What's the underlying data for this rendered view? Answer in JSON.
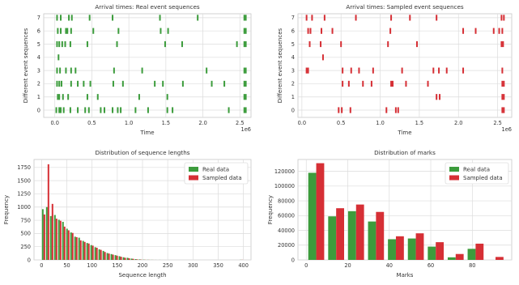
{
  "colors": {
    "real": "#3c9c3c",
    "sampled": "#d62f35",
    "grid": "#dcdcdc",
    "frame": "#c8c8c8"
  },
  "chart_data": [
    {
      "id": "real-events",
      "type": "scatter",
      "title": "Arrival times: Real event sequences",
      "xlabel": "Time",
      "ylabel": "Different event sequences",
      "x_offset_label": "1e6",
      "xlim": [
        -0.15,
        2.65
      ],
      "xticks": [
        0.0,
        0.5,
        1.0,
        1.5,
        2.0,
        2.5
      ],
      "tick_labels_x": [
        "0.0",
        "0.5",
        "1.0",
        "1.5",
        "2.0",
        "2.5"
      ],
      "yticks": [
        0,
        1,
        2,
        3,
        4,
        5,
        6,
        7
      ],
      "tick_labels_y": [
        "0",
        "1",
        "2",
        "3",
        "4",
        "5",
        "6",
        "7"
      ],
      "series_color": "real",
      "rows": [
        [
          0.02,
          0.06,
          0.08,
          0.12,
          0.21,
          0.31,
          0.41,
          0.46,
          0.62,
          0.67,
          0.78,
          0.85,
          0.89,
          1.09,
          1.26,
          1.52,
          1.59,
          2.35,
          2.56,
          2.58
        ],
        [
          0.04,
          0.06,
          0.11,
          0.18,
          0.44,
          0.58,
          1.14,
          1.52,
          2.56,
          2.58
        ],
        [
          0.03,
          0.06,
          0.09,
          0.22,
          0.31,
          0.39,
          0.48,
          0.79,
          0.92,
          1.35,
          1.46,
          1.73,
          2.12,
          2.29,
          2.56,
          2.58
        ],
        [
          0.03,
          0.07,
          0.15,
          0.22,
          0.28,
          0.8,
          1.18,
          2.05,
          2.56,
          2.58
        ],
        [
          0.05
        ],
        [
          0.03,
          0.06,
          0.1,
          0.14,
          0.21,
          0.44,
          0.84,
          1.49,
          1.72,
          2.46,
          2.56,
          2.58
        ],
        [
          0.04,
          0.08,
          0.15,
          0.17,
          0.22,
          0.52,
          0.86,
          1.43,
          1.53,
          2.56,
          2.58
        ],
        [
          0.03,
          0.08,
          0.19,
          0.23,
          0.47,
          0.78,
          1.42,
          1.93,
          2.56,
          2.58
        ]
      ]
    },
    {
      "id": "sampled-events",
      "type": "scatter",
      "title": "Arrival times: Sampled event sequences",
      "xlabel": "Time",
      "ylabel": "Different event sequences",
      "x_offset_label": "1e6",
      "xlim": [
        -0.05,
        2.68
      ],
      "xticks": [
        0.0,
        0.5,
        1.0,
        1.5,
        2.0,
        2.5
      ],
      "tick_labels_x": [
        "0.0",
        "0.5",
        "1.0",
        "1.5",
        "2.0",
        "2.5"
      ],
      "yticks": [
        0,
        1,
        2,
        3,
        4,
        5,
        6,
        7
      ],
      "tick_labels_y": [
        "0",
        "1",
        "2",
        "3",
        "4",
        "5",
        "6",
        "7"
      ],
      "series_color": "sampled",
      "rows": [
        [
          0.47,
          0.51,
          0.62,
          1.08,
          1.2,
          1.23,
          2.56,
          2.58
        ],
        [
          1.72,
          1.76,
          2.56,
          2.58
        ],
        [
          0.52,
          0.6,
          0.78,
          0.89,
          1.14,
          1.16,
          1.33,
          1.61,
          2.56,
          2.58
        ],
        [
          0.06,
          0.08,
          0.52,
          0.63,
          0.73,
          0.91,
          1.28,
          1.68,
          1.75,
          1.85,
          2.06,
          2.56
        ],
        [
          0.27
        ],
        [
          0.1,
          0.24,
          0.5,
          1.1,
          1.47,
          2.55,
          2.57
        ],
        [
          0.08,
          0.11,
          0.25,
          0.39,
          1.13,
          2.06,
          2.22,
          2.45,
          2.52,
          2.56
        ],
        [
          0.06,
          0.13,
          0.29,
          0.69,
          1.14,
          1.38,
          1.72,
          2.55,
          2.58
        ]
      ]
    },
    {
      "id": "lengths",
      "type": "bar",
      "title": "Distribution of sequence lengths",
      "xlabel": "Sequence length",
      "ylabel": "Frequency",
      "xlim": [
        -15,
        415
      ],
      "ylim": [
        0,
        1900
      ],
      "xticks": [
        0,
        50,
        100,
        150,
        200,
        250,
        300,
        350,
        400
      ],
      "tick_labels_x": [
        "0",
        "50",
        "100",
        "150",
        "200",
        "250",
        "300",
        "350",
        "400"
      ],
      "yticks": [
        0,
        250,
        500,
        750,
        1000,
        1250,
        1500,
        1750
      ],
      "tick_labels_y": [
        "0",
        "250",
        "500",
        "750",
        "1000",
        "1250",
        "1500",
        "1750"
      ],
      "bin_start": 0,
      "bin_width": 8,
      "legend_position": "top-right",
      "series": [
        {
          "name": "Real data",
          "color": "real",
          "values": [
            960,
            1000,
            830,
            850,
            760,
            720,
            590,
            520,
            440,
            420,
            360,
            320,
            280,
            240,
            200,
            170,
            130,
            110,
            90,
            70,
            50,
            40,
            25,
            15,
            10,
            5,
            3,
            2,
            1,
            1,
            0,
            0,
            0,
            0,
            0,
            0,
            0,
            0,
            0,
            0,
            0,
            0,
            0,
            0,
            0,
            0,
            0,
            0,
            0,
            2
          ]
        },
        {
          "name": "Sampled data",
          "color": "sampled",
          "values": [
            860,
            1810,
            1060,
            780,
            740,
            630,
            560,
            510,
            430,
            370,
            340,
            310,
            270,
            230,
            190,
            150,
            120,
            100,
            80,
            60,
            40,
            30,
            20,
            10,
            5,
            3,
            2,
            1,
            0,
            0,
            0,
            0,
            0,
            0,
            0,
            0,
            0,
            0,
            0,
            0,
            0,
            0,
            0,
            0,
            0,
            0,
            0,
            0,
            0,
            2
          ]
        }
      ]
    },
    {
      "id": "marks",
      "type": "bar",
      "title": "Distribution of marks",
      "xlabel": "Marks",
      "ylabel": "Frequency",
      "xlim": [
        -4,
        99
      ],
      "ylim": [
        0,
        136000
      ],
      "xticks": [
        0,
        20,
        40,
        60,
        80
      ],
      "tick_labels_x": [
        "0",
        "20",
        "40",
        "60",
        "80"
      ],
      "yticks": [
        0,
        20000,
        40000,
        60000,
        80000,
        100000,
        120000
      ],
      "tick_labels_y": [
        "0",
        "20000",
        "40000",
        "60000",
        "80000",
        "100000",
        "120000"
      ],
      "bin_start": 0,
      "bin_width": 9.6,
      "legend_position": "top-right",
      "series": [
        {
          "name": "Real data",
          "color": "real",
          "values": [
            118000,
            59000,
            66000,
            52000,
            28000,
            29000,
            18000,
            3500,
            15000,
            0
          ]
        },
        {
          "name": "Sampled data",
          "color": "sampled",
          "values": [
            131000,
            70000,
            75000,
            65000,
            32000,
            36000,
            24000,
            8000,
            22000,
            4000
          ]
        }
      ]
    }
  ]
}
